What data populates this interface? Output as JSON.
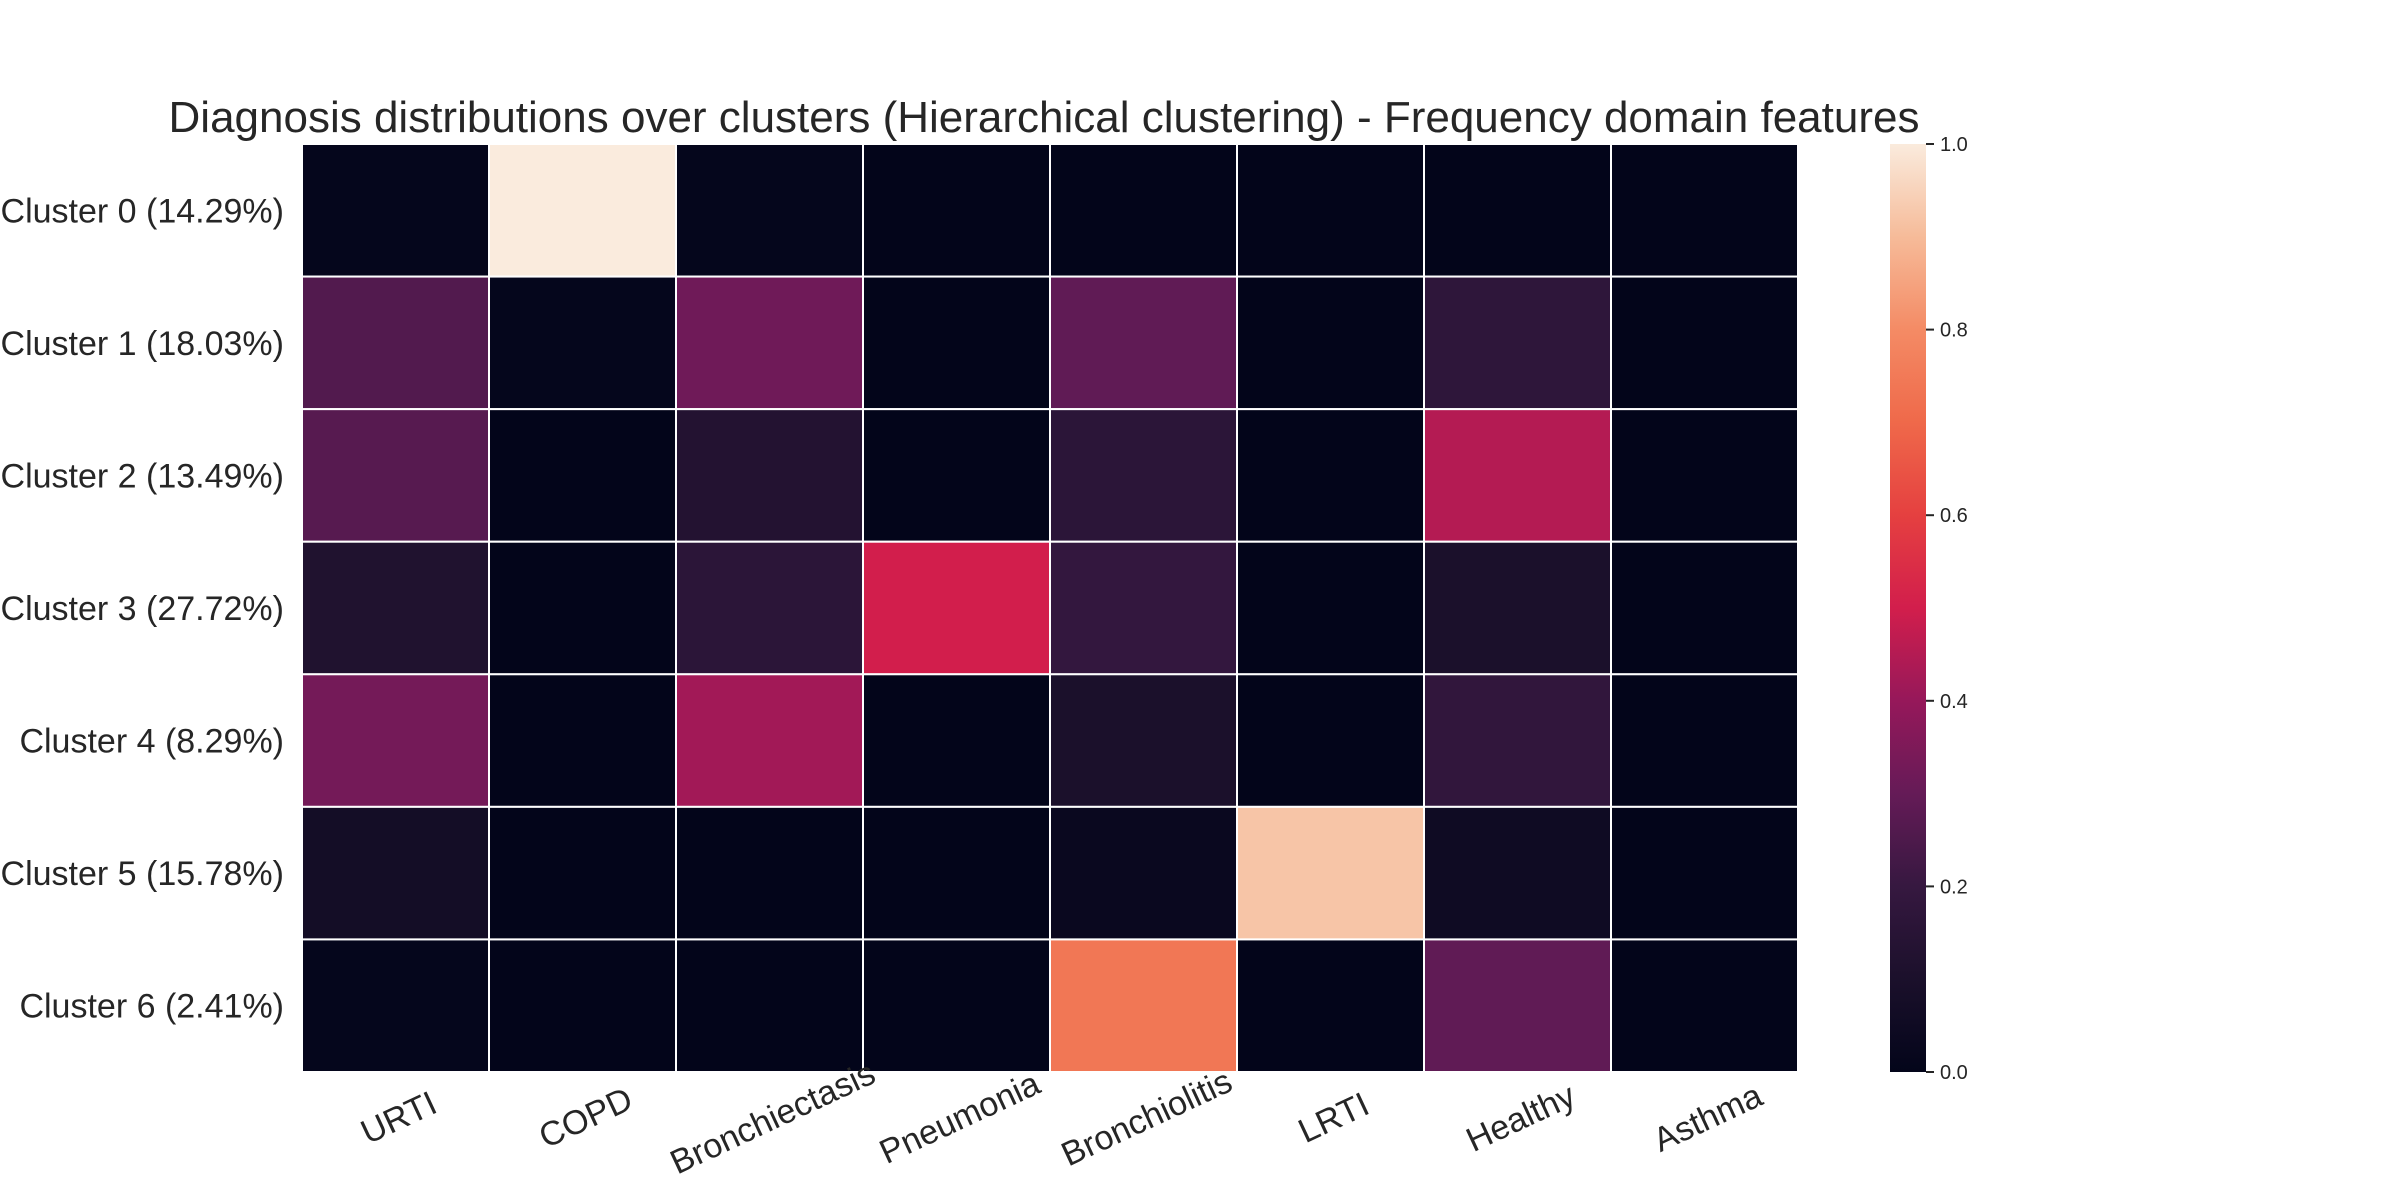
{
  "chart_data": {
    "type": "heatmap",
    "title": "Diagnosis distributions over clusters (Hierarchical clustering) - Frequency domain features",
    "x_categories": [
      "URTI",
      "COPD",
      "Bronchiectasis",
      "Pneumonia",
      "Bronchiolitis",
      "LRTI",
      "Healthy",
      "Asthma"
    ],
    "y_categories": [
      "Cluster 0 (14.29%)",
      "Cluster 1 (18.03%)",
      "Cluster 2 (13.49%)",
      "Cluster 3 (27.72%)",
      "Cluster 4 (8.29%)",
      "Cluster 5 (15.78%)",
      "Cluster 6 (2.41%)"
    ],
    "values": [
      [
        0.01,
        1.0,
        0.01,
        0.0,
        0.0,
        0.0,
        0.0,
        0.0
      ],
      [
        0.26,
        0.01,
        0.32,
        0.0,
        0.29,
        0.0,
        0.17,
        0.0
      ],
      [
        0.27,
        0.0,
        0.13,
        0.0,
        0.16,
        0.0,
        0.45,
        0.0
      ],
      [
        0.12,
        0.0,
        0.16,
        0.5,
        0.19,
        0.0,
        0.1,
        0.0
      ],
      [
        0.33,
        0.0,
        0.42,
        0.0,
        0.1,
        0.0,
        0.18,
        0.0
      ],
      [
        0.07,
        0.0,
        0.0,
        0.0,
        0.03,
        0.92,
        0.05,
        0.0
      ],
      [
        0.01,
        0.0,
        0.0,
        0.0,
        0.74,
        0.0,
        0.29,
        0.0
      ]
    ],
    "colorbar": {
      "ticks": [
        0.0,
        0.2,
        0.4,
        0.6,
        0.8,
        1.0
      ],
      "tick_labels": [
        "0.0",
        "0.2",
        "0.4",
        "0.6",
        "0.8",
        "1.0"
      ],
      "vmin": 0.0,
      "vmax": 1.0,
      "colormap": "rocket"
    },
    "gridlines": "white cell borders",
    "legend": "colorbar-right"
  }
}
